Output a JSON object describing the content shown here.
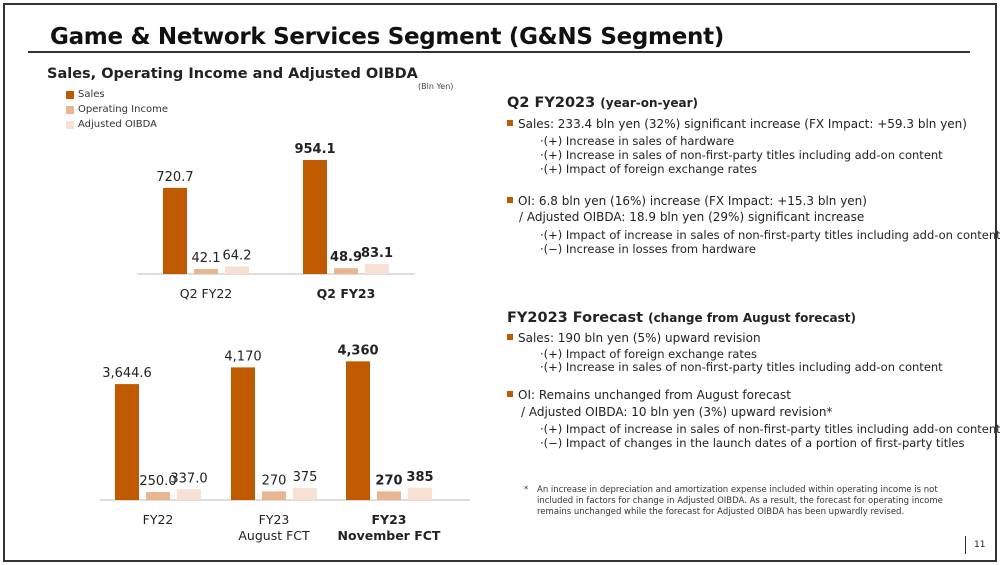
{
  "title": "Game & Network Services Segment (G&NS Segment)",
  "page_number": "11",
  "colors": {
    "sales": "#c05a00",
    "oi": "#e8b591",
    "oibda": "#f8e0d2"
  },
  "chart_data": [
    {
      "type": "bar",
      "title": "Sales, Operating Income and Adjusted OIBDA",
      "unit": "(Bln Yen)",
      "legend": [
        "Sales",
        "Operating Income",
        "Adjusted OIBDA"
      ],
      "categories": [
        "Q2 FY22",
        "Q2 FY23"
      ],
      "series": [
        {
          "name": "Sales",
          "values": [
            720.7,
            954.1
          ],
          "labels": [
            "720.7",
            "954.1"
          ]
        },
        {
          "name": "Operating Income",
          "values": [
            42.1,
            48.9
          ],
          "labels": [
            "42.1",
            "48.9"
          ]
        },
        {
          "name": "Adjusted OIBDA",
          "values": [
            64.2,
            83.1
          ],
          "labels": [
            "64.2",
            "83.1"
          ]
        }
      ]
    },
    {
      "type": "bar",
      "categories": [
        "FY22",
        "FY23\nAugust FCT",
        "FY23\nNovember FCT"
      ],
      "series": [
        {
          "name": "Sales",
          "values": [
            3644.6,
            4170,
            4360
          ],
          "labels": [
            "3,644.6",
            "4,170",
            "4,360"
          ]
        },
        {
          "name": "Operating Income",
          "values": [
            250.0,
            270,
            270
          ],
          "labels": [
            "250.0",
            "270",
            "270"
          ]
        },
        {
          "name": "Adjusted OIBDA",
          "values": [
            337.0,
            375,
            385
          ],
          "labels": [
            "337.0",
            "375",
            "385"
          ]
        }
      ]
    }
  ],
  "q2": {
    "heading": "Q2 FY2023",
    "heading_sub": "(year-on-year)",
    "sales": "Sales: 233.4 bln yen (32%) significant increase (FX Impact: +59.3 bln yen)",
    "sales_items": [
      "·(+) Increase in sales of hardware",
      "·(+) Increase in sales of non-first-party titles including add-on content",
      "·(+) Impact of foreign exchange rates"
    ],
    "oi": "OI:  6.8 bln yen (16%) increase  (FX Impact: +15.3 bln yen)",
    "oibda": "/ Adjusted OIBDA: 18.9 bln yen (29%) significant increase",
    "oi_items": [
      "·(+) Impact of increase in sales of non-first-party titles including add-on content",
      "·(−) Increase in losses from hardware"
    ]
  },
  "fct": {
    "heading": "FY2023 Forecast",
    "heading_sub": "(change from August forecast)",
    "sales": "Sales: 190 bln yen (5%) upward revision",
    "sales_items": [
      "·(+) Impact of foreign exchange rates",
      "·(+) Increase in sales of non-first-party titles including add-on content"
    ],
    "oi": "OI: Remains unchanged from August forecast",
    "oibda": "/ Adjusted OIBDA: 10 bln yen (3%) upward revision*",
    "oi_items": [
      "·(+) Impact of increase in sales of non-first-party titles including add-on content",
      "·(−) Impact of changes in the launch dates of a portion of first-party titles"
    ]
  },
  "footnote": {
    "mark": "*",
    "lines": [
      "An increase in depreciation and amortization expense included within operating income is not",
      "included in factors for change in Adjusted OIBDA. As a result, the forecast for operating income",
      "remains unchanged while the forecast for Adjusted OIBDA has been upwardly revised."
    ]
  }
}
